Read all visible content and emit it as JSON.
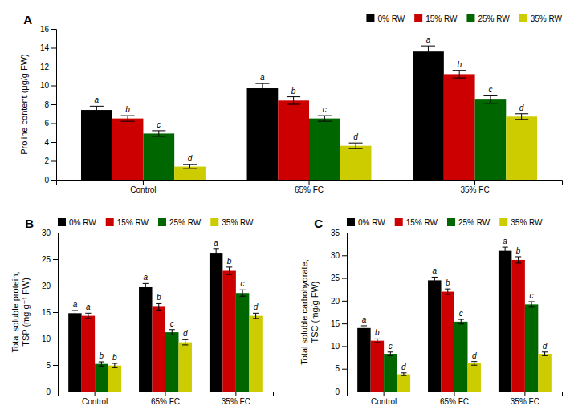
{
  "chart_data": [
    {
      "type": "bar",
      "title": "A",
      "ylabel": "Proline content (μg/g FW)",
      "categories": [
        "Control",
        "65% FC",
        "35% FC"
      ],
      "series": [
        {
          "name": "0% RW",
          "color": "#000000",
          "values": [
            7.4,
            9.7,
            13.6
          ],
          "errors": [
            0.4,
            0.5,
            0.6
          ],
          "letters": [
            "a",
            "a",
            "a"
          ]
        },
        {
          "name": "15% RW",
          "color": "#cc0000",
          "values": [
            6.5,
            8.4,
            11.2
          ],
          "errors": [
            0.3,
            0.4,
            0.4
          ],
          "letters": [
            "b",
            "b",
            "b"
          ]
        },
        {
          "name": "25% RW",
          "color": "#006600",
          "values": [
            4.9,
            6.5,
            8.5
          ],
          "errors": [
            0.3,
            0.3,
            0.4
          ],
          "letters": [
            "c",
            "c",
            "c"
          ]
        },
        {
          "name": "35% RW",
          "color": "#cccc00",
          "values": [
            1.4,
            3.6,
            6.7
          ],
          "errors": [
            0.2,
            0.3,
            0.3
          ],
          "letters": [
            "d",
            "d",
            "d"
          ]
        }
      ],
      "ylim": [
        0,
        16
      ],
      "yticks": [
        0,
        2,
        4,
        6,
        8,
        10,
        12,
        14,
        16
      ],
      "legend": "upper right"
    },
    {
      "type": "bar",
      "title": "B",
      "ylabel": "Total soluble protein,\nTSP (mg g⁻¹ FW)",
      "categories": [
        "Control",
        "65% FC",
        "35% FC"
      ],
      "series": [
        {
          "name": "0% RW",
          "color": "#000000",
          "values": [
            14.8,
            19.7,
            26.2
          ],
          "errors": [
            0.5,
            0.7,
            0.8
          ],
          "letters": [
            "a",
            "a",
            "a"
          ]
        },
        {
          "name": "15% RW",
          "color": "#cc0000",
          "values": [
            14.3,
            16.0,
            22.8
          ],
          "errors": [
            0.5,
            0.6,
            0.7
          ],
          "letters": [
            "a",
            "b",
            "b"
          ]
        },
        {
          "name": "25% RW",
          "color": "#006600",
          "values": [
            5.2,
            11.2,
            18.6
          ],
          "errors": [
            0.4,
            0.5,
            0.6
          ],
          "letters": [
            "b",
            "c",
            "c"
          ]
        },
        {
          "name": "35% RW",
          "color": "#cccc00",
          "values": [
            4.9,
            9.3,
            14.3
          ],
          "errors": [
            0.4,
            0.5,
            0.5
          ],
          "letters": [
            "b",
            "d",
            "d"
          ]
        }
      ],
      "ylim": [
        0,
        30
      ],
      "yticks": [
        0,
        5,
        10,
        15,
        20,
        25,
        30
      ],
      "legend": "upper left"
    },
    {
      "type": "bar",
      "title": "C",
      "ylabel": "Total soluble carbohydrate,\nTSC (mg/g FW)",
      "categories": [
        "Control",
        "65% FC",
        "35% FC"
      ],
      "series": [
        {
          "name": "0% RW",
          "color": "#000000",
          "values": [
            14.0,
            24.5,
            31.0
          ],
          "errors": [
            0.5,
            0.7,
            0.8
          ],
          "letters": [
            "a",
            "a",
            "a"
          ]
        },
        {
          "name": "15% RW",
          "color": "#cc0000",
          "values": [
            11.2,
            22.0,
            29.0
          ],
          "errors": [
            0.4,
            0.6,
            0.7
          ],
          "letters": [
            "b",
            "b",
            "b"
          ]
        },
        {
          "name": "25% RW",
          "color": "#006600",
          "values": [
            8.3,
            15.4,
            19.2
          ],
          "errors": [
            0.4,
            0.5,
            0.6
          ],
          "letters": [
            "c",
            "c",
            "c"
          ]
        },
        {
          "name": "35% RW",
          "color": "#cccc00",
          "values": [
            3.8,
            6.2,
            8.3
          ],
          "errors": [
            0.3,
            0.4,
            0.4
          ],
          "letters": [
            "d",
            "d",
            "d"
          ]
        }
      ],
      "ylim": [
        0,
        35
      ],
      "yticks": [
        0,
        5,
        10,
        15,
        20,
        25,
        30,
        35
      ],
      "legend": "upper left"
    }
  ]
}
